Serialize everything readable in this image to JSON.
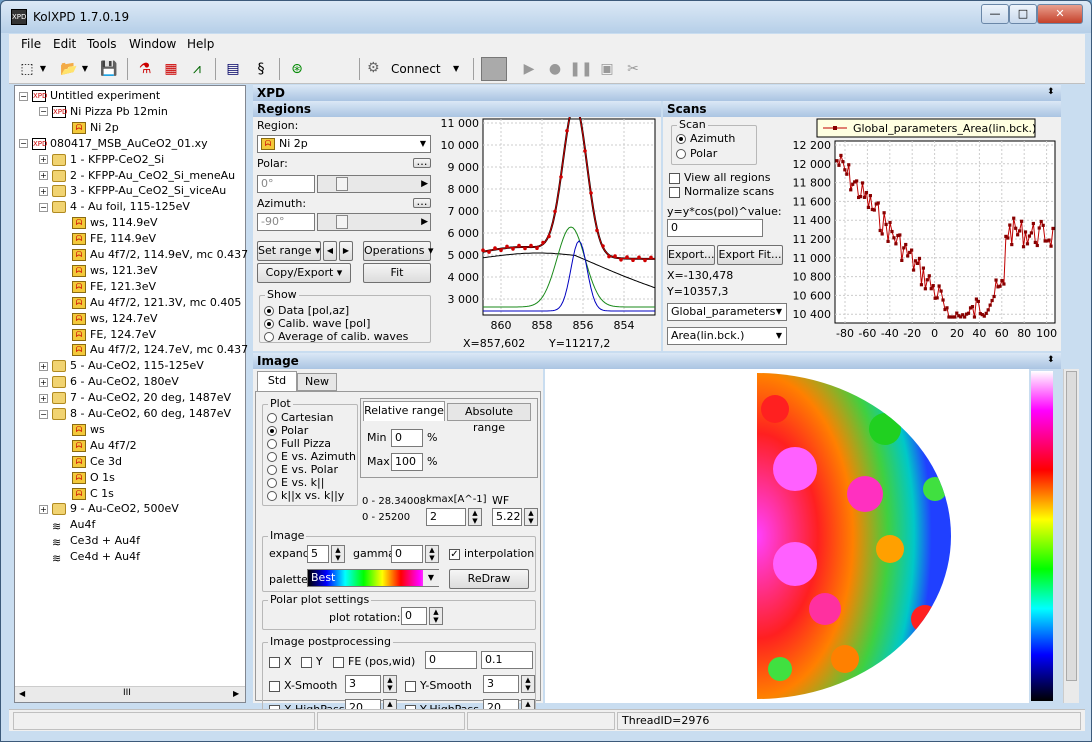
{
  "window": {
    "title": "KolXPD 1.7.0.19"
  },
  "menu": [
    "File",
    "Edit",
    "Tools",
    "Window",
    "Help"
  ],
  "toolbar": {
    "connect": "Connect"
  },
  "tree": [
    {
      "label": "Untitled experiment",
      "indent": 0,
      "icon": "experiment",
      "exp": "−"
    },
    {
      "label": "Ni Pizza Pb 12min",
      "indent": 1,
      "icon": "spectrum-xpd",
      "exp": "−"
    },
    {
      "label": "Ni 2p",
      "indent": 2,
      "icon": "region"
    },
    {
      "label": "080417_MSB_AuCeO2_01.xy",
      "indent": 0,
      "icon": "experiment",
      "exp": "−"
    },
    {
      "label": "1 - KFPP-CeO2_Si",
      "indent": 1,
      "icon": "folder",
      "exp": "+"
    },
    {
      "label": "2 - KFPP-Au_CeO2_Si_meneAu",
      "indent": 1,
      "icon": "folder",
      "exp": "+"
    },
    {
      "label": "3 - KFPP-Au_CeO2_Si_viceAu",
      "indent": 1,
      "icon": "folder",
      "exp": "+"
    },
    {
      "label": "4 - Au foil, 115-125eV",
      "indent": 1,
      "icon": "folder",
      "exp": "−"
    },
    {
      "label": "ws, 114.9eV",
      "indent": 2,
      "icon": "region"
    },
    {
      "label": "FE, 114.9eV",
      "indent": 2,
      "icon": "region"
    },
    {
      "label": "Au 4f7/2, 114.9eV, mc 0.437",
      "indent": 2,
      "icon": "region"
    },
    {
      "label": "ws, 121.3eV",
      "indent": 2,
      "icon": "region"
    },
    {
      "label": "FE, 121.3eV",
      "indent": 2,
      "icon": "region"
    },
    {
      "label": "Au 4f7/2, 121.3V, mc 0.405",
      "indent": 2,
      "icon": "region"
    },
    {
      "label": "ws, 124.7eV",
      "indent": 2,
      "icon": "region"
    },
    {
      "label": "FE, 124.7eV",
      "indent": 2,
      "icon": "region"
    },
    {
      "label": "Au 4f7/2, 124.7eV, mc 0.437",
      "indent": 2,
      "icon": "region"
    },
    {
      "label": "5 - Au-CeO2, 115-125eV",
      "indent": 1,
      "icon": "folder",
      "exp": "+"
    },
    {
      "label": "6 - Au-CeO2, 180eV",
      "indent": 1,
      "icon": "folder",
      "exp": "+"
    },
    {
      "label": "7 - Au-CeO2, 20 deg, 1487eV",
      "indent": 1,
      "icon": "folder",
      "exp": "+"
    },
    {
      "label": "8 - Au-CeO2, 60 deg, 1487eV",
      "indent": 1,
      "icon": "folder",
      "exp": "−"
    },
    {
      "label": "ws",
      "indent": 2,
      "icon": "region"
    },
    {
      "label": "Au 4f7/2",
      "indent": 2,
      "icon": "region"
    },
    {
      "label": "Ce 3d",
      "indent": 2,
      "icon": "region"
    },
    {
      "label": "O 1s",
      "indent": 2,
      "icon": "region"
    },
    {
      "label": "C 1s",
      "indent": 2,
      "icon": "region"
    },
    {
      "label": "9 - Au-CeO2, 500eV",
      "indent": 1,
      "icon": "folder",
      "exp": "+"
    },
    {
      "label": "Au4f",
      "indent": 1,
      "icon": "spectra"
    },
    {
      "label": "Ce3d + Au4f",
      "indent": 1,
      "icon": "spectra"
    },
    {
      "label": "Ce4d + Au4f",
      "indent": 1,
      "icon": "spectra"
    }
  ],
  "tree_scroll": "III",
  "xpd_header": "XPD",
  "regions": {
    "header": "Regions",
    "region_label": "Region:",
    "region_value": "Ni 2p",
    "polar_label": "Polar:",
    "polar_value": "0°",
    "azimuth_label": "Azimuth:",
    "azimuth_value": "-90°",
    "set_range": "Set range",
    "operations": "Operations",
    "copy_export": "Copy/Export",
    "fit": "Fit",
    "show_label": "Show",
    "show_options": [
      "Data [pol,az]",
      "Calib. wave [pol]",
      "Average of calib. waves"
    ],
    "cursor_x": "X=857,602",
    "cursor_y": "Y=11217,2"
  },
  "spectrum_chart": {
    "yticks": [
      "11 000",
      "10 000",
      "9 000",
      "8 000",
      "7 000",
      "6 000",
      "5 000",
      "4 000",
      "3 000"
    ],
    "xticks": [
      "860",
      "858",
      "856",
      "854"
    ]
  },
  "scans": {
    "header": "Scans",
    "scan_label": "Scan",
    "scan_options": [
      "Azimuth",
      "Polar"
    ],
    "view_all": "View all regions",
    "normalize": "Normalize scans",
    "formula": "y=y*cos(pol)^value:",
    "formula_value": "0",
    "export": "Export...",
    "export_fit": "Export Fit...",
    "cursor_x": "X=-130,478",
    "cursor_y": "Y=10357,3",
    "combo1": "Global_parameters",
    "combo2": "Area(lin.bck.)",
    "legend": "Global_parameters_Area(lin.bck.)"
  },
  "scan_chart": {
    "yticks": [
      "12 200",
      "12 000",
      "11 800",
      "11 600",
      "11 400",
      "11 200",
      "11 000",
      "10 800",
      "10 600",
      "10 400"
    ],
    "xticks": [
      "-80",
      "-60",
      "-40",
      "-20",
      "0",
      "20",
      "40",
      "60",
      "80",
      "100"
    ]
  },
  "image": {
    "header": "Image",
    "tabs": [
      "Std",
      "New"
    ],
    "plot_label": "Plot",
    "plot_options": [
      "Cartesian",
      "Polar",
      "Full Pizza",
      "E vs. Azimuth",
      "E vs. Polar",
      "E vs. k||",
      "k||x vs. k||y"
    ],
    "relative_range": "Relative range",
    "absolute_range": "Absolute range",
    "min_label": "Min",
    "min_value": "0",
    "max_label": "Max",
    "max_value": "100",
    "pct": "%",
    "range1": "0 - 28.340081",
    "range2": "0 - 25200",
    "kmax_label": "kmax[A^-1]",
    "kmax_value": "2",
    "wf_label": "WF",
    "wf_value": "5.22",
    "image_group": "Image",
    "expand_label": "expand",
    "expand_value": "5",
    "gamma_label": "gamma",
    "gamma_value": "0",
    "interpolation": "interpolation",
    "palette_label": "palette",
    "palette_value": "Best",
    "redraw": "ReDraw",
    "polar_settings": "Polar plot settings",
    "plot_rotation_label": "plot rotation:",
    "plot_rotation_value": "0",
    "post_label": "Image postprocessing",
    "x_chk": "X",
    "y_chk": "Y",
    "fe_chk": "FE (pos,wid)",
    "fe_pos": "0",
    "fe_wid": "0.1",
    "xsmooth": "X-Smooth",
    "xsmooth_value": "3",
    "ysmooth": "Y-Smooth",
    "ysmooth_value": "3",
    "xhigh": "X-HighPass",
    "xhigh_value": "20",
    "yhigh": "Y-HighPass",
    "yhigh_value": "20"
  },
  "status": {
    "thread": "ThreadID=2976"
  },
  "colors": {
    "accent": "#1e4e8c",
    "spectrum_red": "#d00000",
    "fit_black": "#000000",
    "comp_green": "#1a8a1a",
    "comp_blue": "#0000c0",
    "scan_line": "#c00000"
  }
}
